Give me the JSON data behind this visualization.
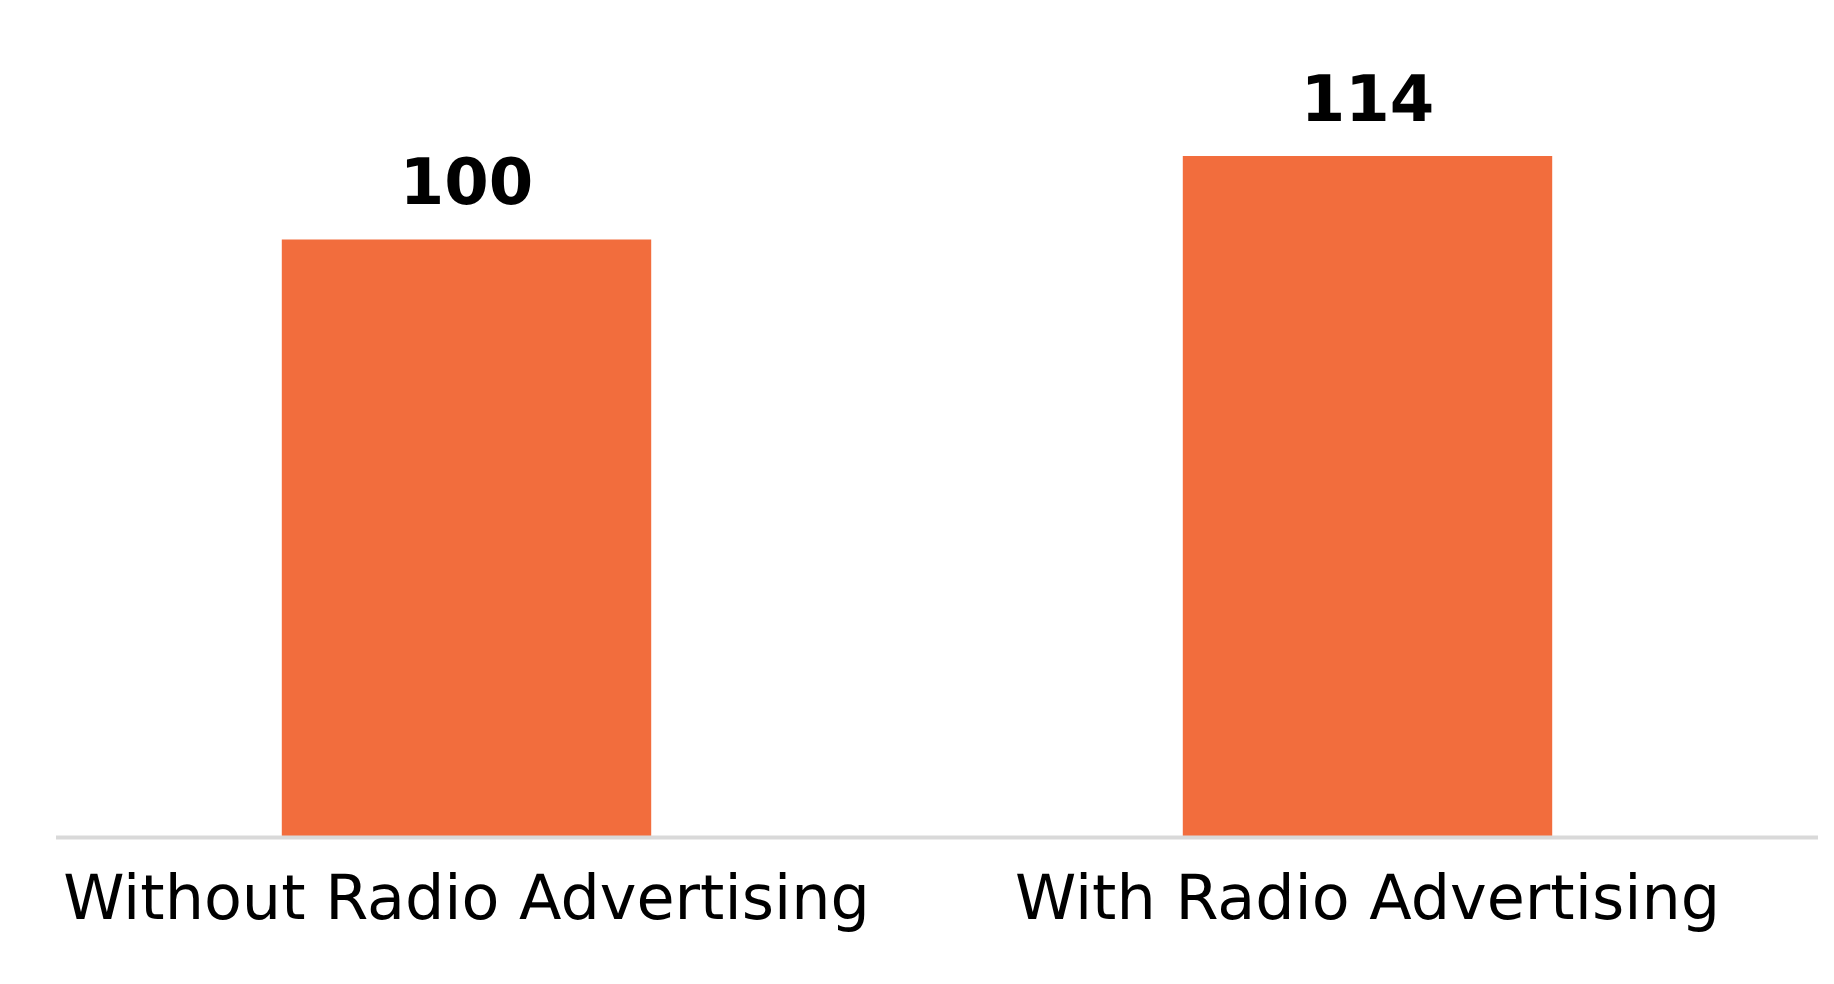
{
  "chart_data": {
    "type": "bar",
    "categories": [
      "Without Radio Advertising",
      "With Radio Advertising"
    ],
    "values": [
      100,
      114
    ],
    "color": "#f26d3d",
    "data_labels": true,
    "tick_labels": "x",
    "grid": false,
    "legend": false
  }
}
